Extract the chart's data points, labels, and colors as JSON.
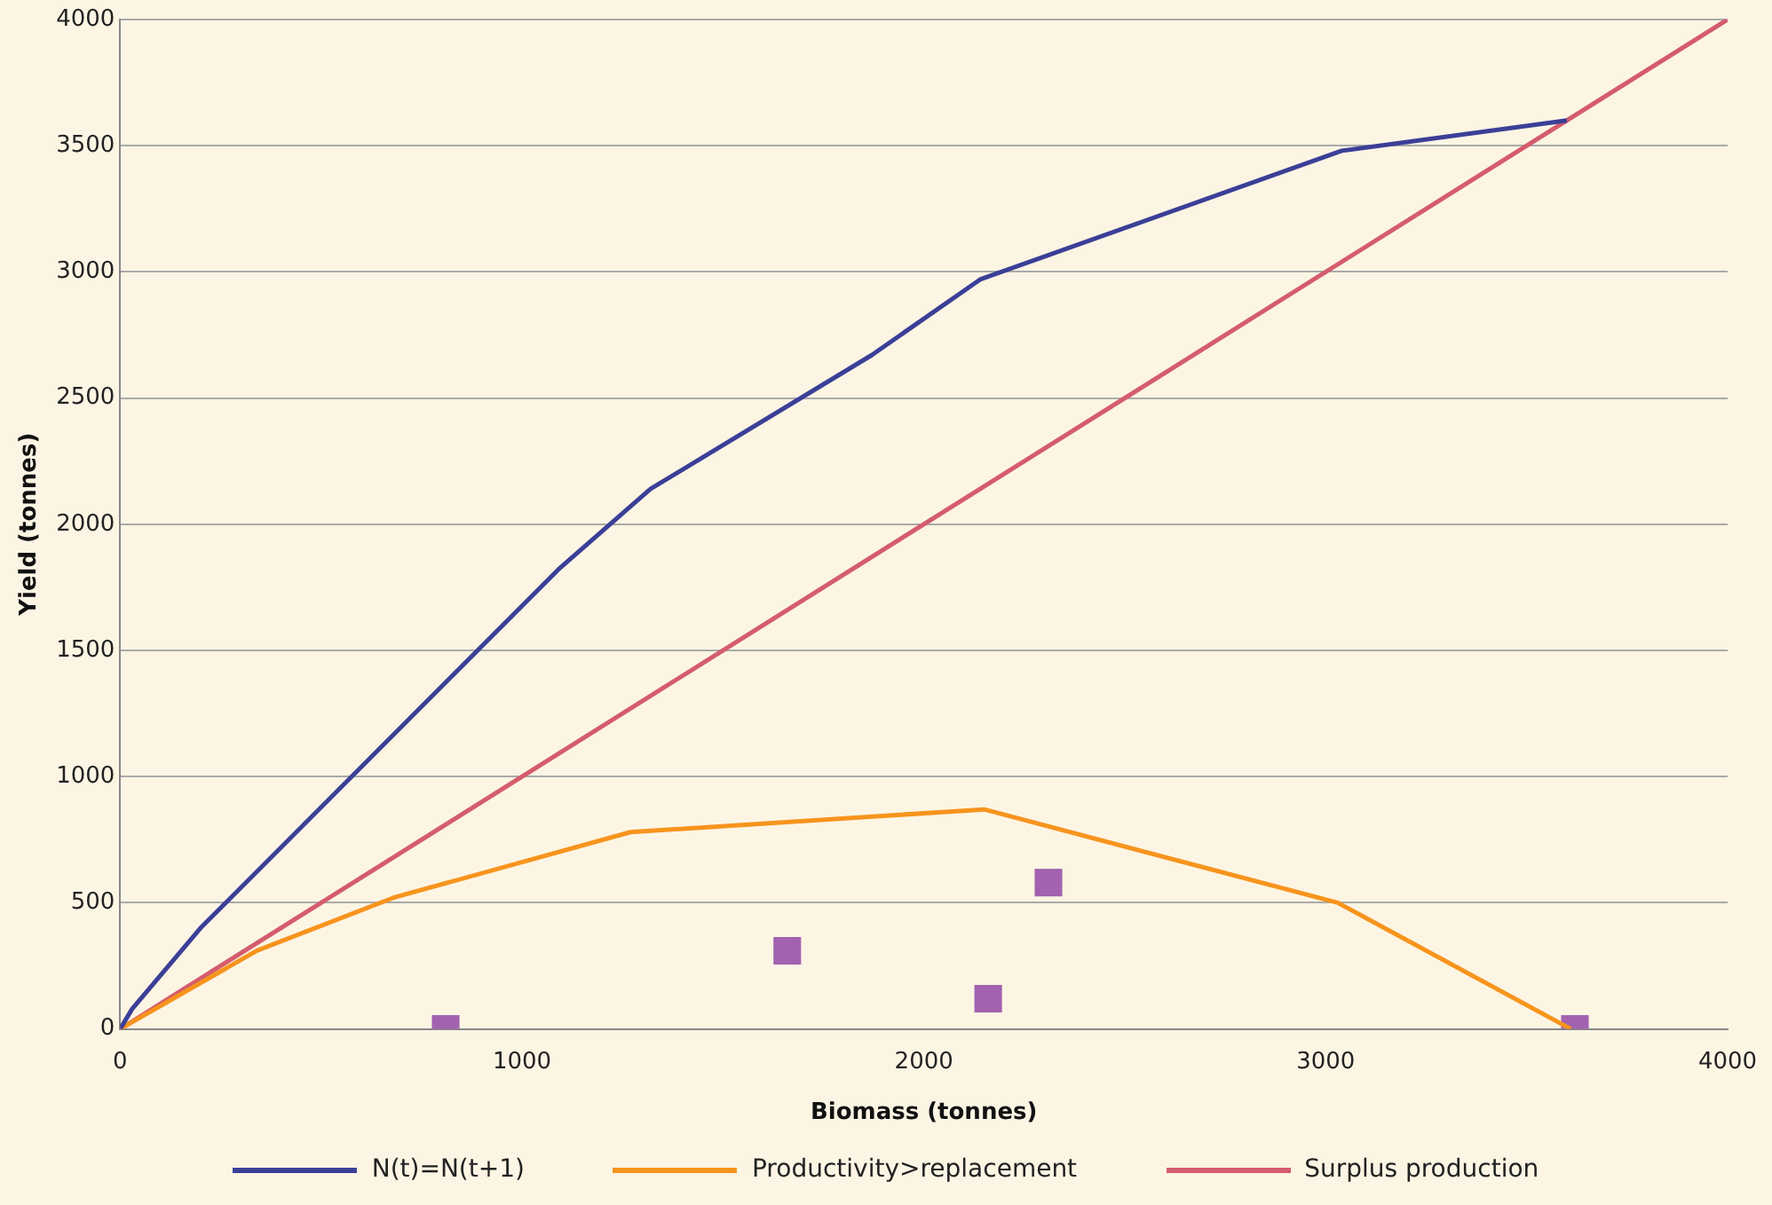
{
  "chart_data": {
    "type": "line",
    "xlabel": "Biomass (tonnes)",
    "ylabel": "Yield (tonnes)",
    "xlim": [
      0,
      4000
    ],
    "xticks": [
      0,
      1000,
      2000,
      3000,
      4000
    ],
    "ylim": [
      0,
      4000
    ],
    "yticks": [
      0,
      500,
      1000,
      1500,
      2000,
      2500,
      3000,
      3500,
      4000
    ],
    "grid": "y",
    "legend": "bottom",
    "marker": "none",
    "line_style": "solid",
    "series": [
      {
        "name": "N(t)=N(t+1)",
        "color": "#3b3f97",
        "x": [
          0,
          30,
          200,
          1090,
          1320,
          1870,
          2140,
          3040,
          3600
        ],
        "values": [
          0,
          80,
          400,
          1820,
          2140,
          2670,
          2970,
          3480,
          3600
        ]
      },
      {
        "name": "Productivity>replacement",
        "color": "#f7941d",
        "x": [
          0,
          340,
          680,
          1270,
          2150,
          3030,
          3610
        ],
        "values": [
          0,
          310,
          520,
          780,
          870,
          500,
          0
        ]
      },
      {
        "name": "Surplus production",
        "color": "#d45c6d",
        "x": [
          0,
          4000
        ],
        "values": [
          0,
          4000
        ]
      },
      {
        "color": "#a262b0",
        "type": "scatter",
        "marker": "square",
        "x": [
          810,
          1660,
          2160,
          2310,
          3620
        ],
        "values": [
          0,
          310,
          120,
          580,
          0
        ]
      }
    ]
  }
}
